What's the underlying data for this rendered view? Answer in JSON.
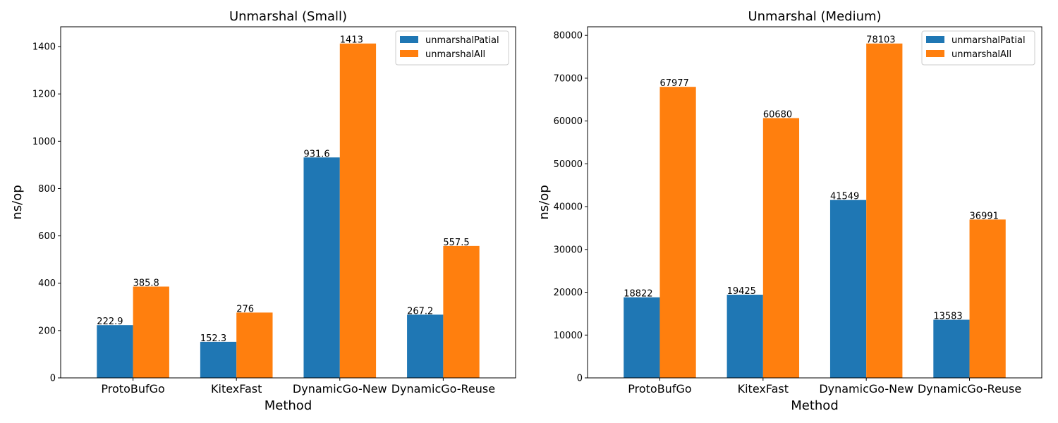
{
  "chart_data": [
    {
      "type": "bar",
      "title": "Unmarshal (Small)",
      "xlabel": "Method",
      "ylabel": "ns/op",
      "categories": [
        "ProtoBufGo",
        "KitexFast",
        "DynamicGo-New",
        "DynamicGo-Reuse"
      ],
      "series": [
        {
          "name": "unmarshalPatial",
          "values": [
            222.9,
            152.3,
            931.6,
            267.2
          ],
          "labels": [
            "222.9",
            "152.3",
            "931.6",
            "267.2"
          ],
          "color": "#1f77b4"
        },
        {
          "name": "unmarshalAll",
          "values": [
            385.8,
            276,
            1413,
            557.5
          ],
          "labels": [
            "385.8",
            "276",
            "1413",
            "557.5"
          ],
          "color": "#ff7f0e"
        }
      ],
      "ylim": [
        0,
        1483.65
      ],
      "yticks": [
        0,
        200,
        400,
        600,
        800,
        1000,
        1200,
        1400
      ],
      "ytick_labels": [
        "0",
        "200",
        "400",
        "600",
        "800",
        "1000",
        "1200",
        "1400"
      ],
      "grid": false,
      "legend": "top-right"
    },
    {
      "type": "bar",
      "title": "Unmarshal (Medium)",
      "xlabel": "Method",
      "ylabel": "ns/op",
      "categories": [
        "ProtoBufGo",
        "KitexFast",
        "DynamicGo-New",
        "DynamicGo-Reuse"
      ],
      "series": [
        {
          "name": "unmarshalPatial",
          "values": [
            18822,
            19425,
            41549,
            13583
          ],
          "labels": [
            "18822",
            "19425",
            "41549",
            "13583"
          ],
          "color": "#1f77b4"
        },
        {
          "name": "unmarshalAll",
          "values": [
            67977,
            60680,
            78103,
            36991
          ],
          "labels": [
            "67977",
            "60680",
            "78103",
            "36991"
          ],
          "color": "#ff7f0e"
        }
      ],
      "ylim": [
        0,
        82008
      ],
      "yticks": [
        0,
        10000,
        20000,
        30000,
        40000,
        50000,
        60000,
        70000,
        80000
      ],
      "ytick_labels": [
        "0",
        "10000",
        "20000",
        "30000",
        "40000",
        "50000",
        "60000",
        "70000",
        "80000"
      ],
      "grid": false,
      "legend": "top-right"
    }
  ]
}
